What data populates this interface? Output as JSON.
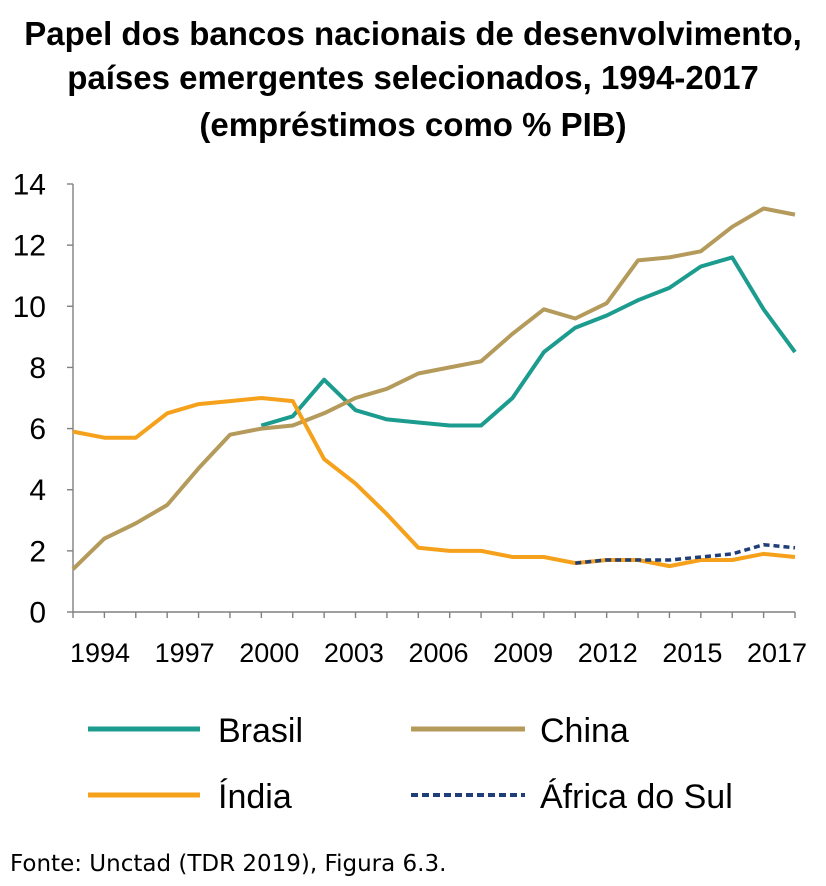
{
  "chart_data": {
    "type": "line",
    "title": [
      "Papel dos bancos nacionais de desenvolvimento,",
      "países emergentes selecionados, 1994-2017",
      "(empréstimos como % PIB)"
    ],
    "x": [
      1994,
      1995,
      1996,
      1997,
      1998,
      1999,
      2000,
      2001,
      2002,
      2003,
      2004,
      2005,
      2006,
      2007,
      2008,
      2009,
      2010,
      2011,
      2012,
      2013,
      2014,
      2015,
      2016,
      2017
    ],
    "x_tick_labels": [
      "1994",
      "1997",
      "2000",
      "2003",
      "2006",
      "2009",
      "2012",
      "2015",
      "2017"
    ],
    "y_ticks": [
      0,
      2,
      4,
      6,
      8,
      10,
      12,
      14
    ],
    "ylim": [
      0,
      14
    ],
    "grid": false,
    "legend_position": "bottom",
    "series": [
      {
        "name": "Brasil",
        "color": "#1C9C8E",
        "dashed": false,
        "values": [
          null,
          null,
          null,
          null,
          null,
          null,
          6.1,
          6.4,
          7.6,
          6.6,
          6.3,
          6.2,
          6.1,
          6.1,
          7.0,
          8.5,
          9.3,
          9.7,
          10.2,
          10.6,
          11.3,
          11.6,
          9.9,
          8.5
        ]
      },
      {
        "name": "China",
        "color": "#B49B5C",
        "dashed": false,
        "values": [
          1.4,
          2.4,
          2.9,
          3.5,
          4.7,
          5.8,
          6.0,
          6.1,
          6.5,
          7.0,
          7.3,
          7.8,
          8.0,
          8.2,
          9.1,
          9.9,
          9.6,
          10.1,
          11.5,
          11.6,
          11.8,
          12.6,
          13.2,
          13.0
        ]
      },
      {
        "name": "Índia",
        "color": "#F6A11B",
        "dashed": false,
        "values": [
          5.9,
          5.7,
          5.7,
          6.5,
          6.8,
          6.9,
          7.0,
          6.9,
          5.0,
          4.2,
          3.2,
          2.1,
          2.0,
          2.0,
          1.8,
          1.8,
          1.6,
          1.7,
          1.7,
          1.5,
          1.7,
          1.7,
          1.9,
          1.8
        ]
      },
      {
        "name": "África do Sul",
        "color": "#203F78",
        "dashed": true,
        "values": [
          null,
          null,
          null,
          null,
          null,
          null,
          null,
          null,
          null,
          null,
          null,
          null,
          null,
          null,
          null,
          null,
          1.6,
          1.7,
          1.7,
          1.7,
          1.8,
          1.9,
          2.2,
          2.1
        ]
      }
    ]
  },
  "source": "Fonte: Unctad (TDR 2019), Figura 6.3."
}
